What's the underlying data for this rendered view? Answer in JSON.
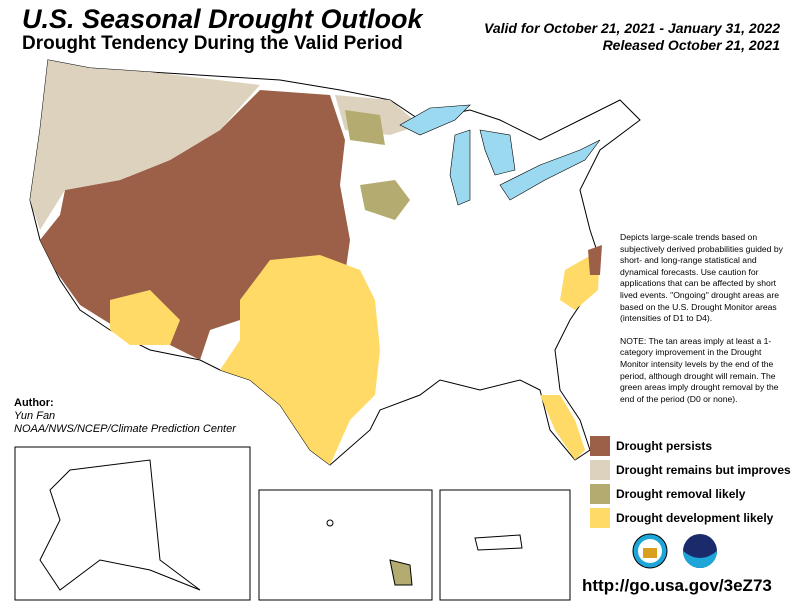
{
  "header": {
    "title": "U.S. Seasonal Drought Outlook",
    "subtitle": "Drought Tendency During the Valid Period",
    "valid": "Valid for October 21, 2021 - January 31, 2022",
    "released": "Released October 21, 2021"
  },
  "notes": {
    "p1": "Depicts large-scale trends based on subjectively derived probabilities guided by short- and long-range statistical and dynamical forecasts. Use caution for applications that can be affected by short lived events. \"Ongoing\" drought areas are based on the U.S. Drought Monitor areas (intensities of D1 to D4).",
    "p2": "NOTE: The tan areas imply at least a 1-category improvement in the Drought Monitor intensity levels by the end of the period, although drought will remain. The green areas imply drought removal by the end of the period (D0 or none)."
  },
  "author": {
    "label": "Author:",
    "name": "Yun Fan",
    "org": "NOAA/NWS/NCEP/Climate Prediction Center"
  },
  "legend": [
    {
      "label": "Drought persists",
      "color": "#9c6049"
    },
    {
      "label": "Drought remains but improves",
      "color": "#ddd2bd"
    },
    {
      "label": "Drought removal likely",
      "color": "#b3ab70"
    },
    {
      "label": "Drought development likely",
      "color": "#ffda66"
    }
  ],
  "url": "http://go.usa.gov/3eZ73",
  "colors": {
    "water": "#9ad9f0"
  }
}
